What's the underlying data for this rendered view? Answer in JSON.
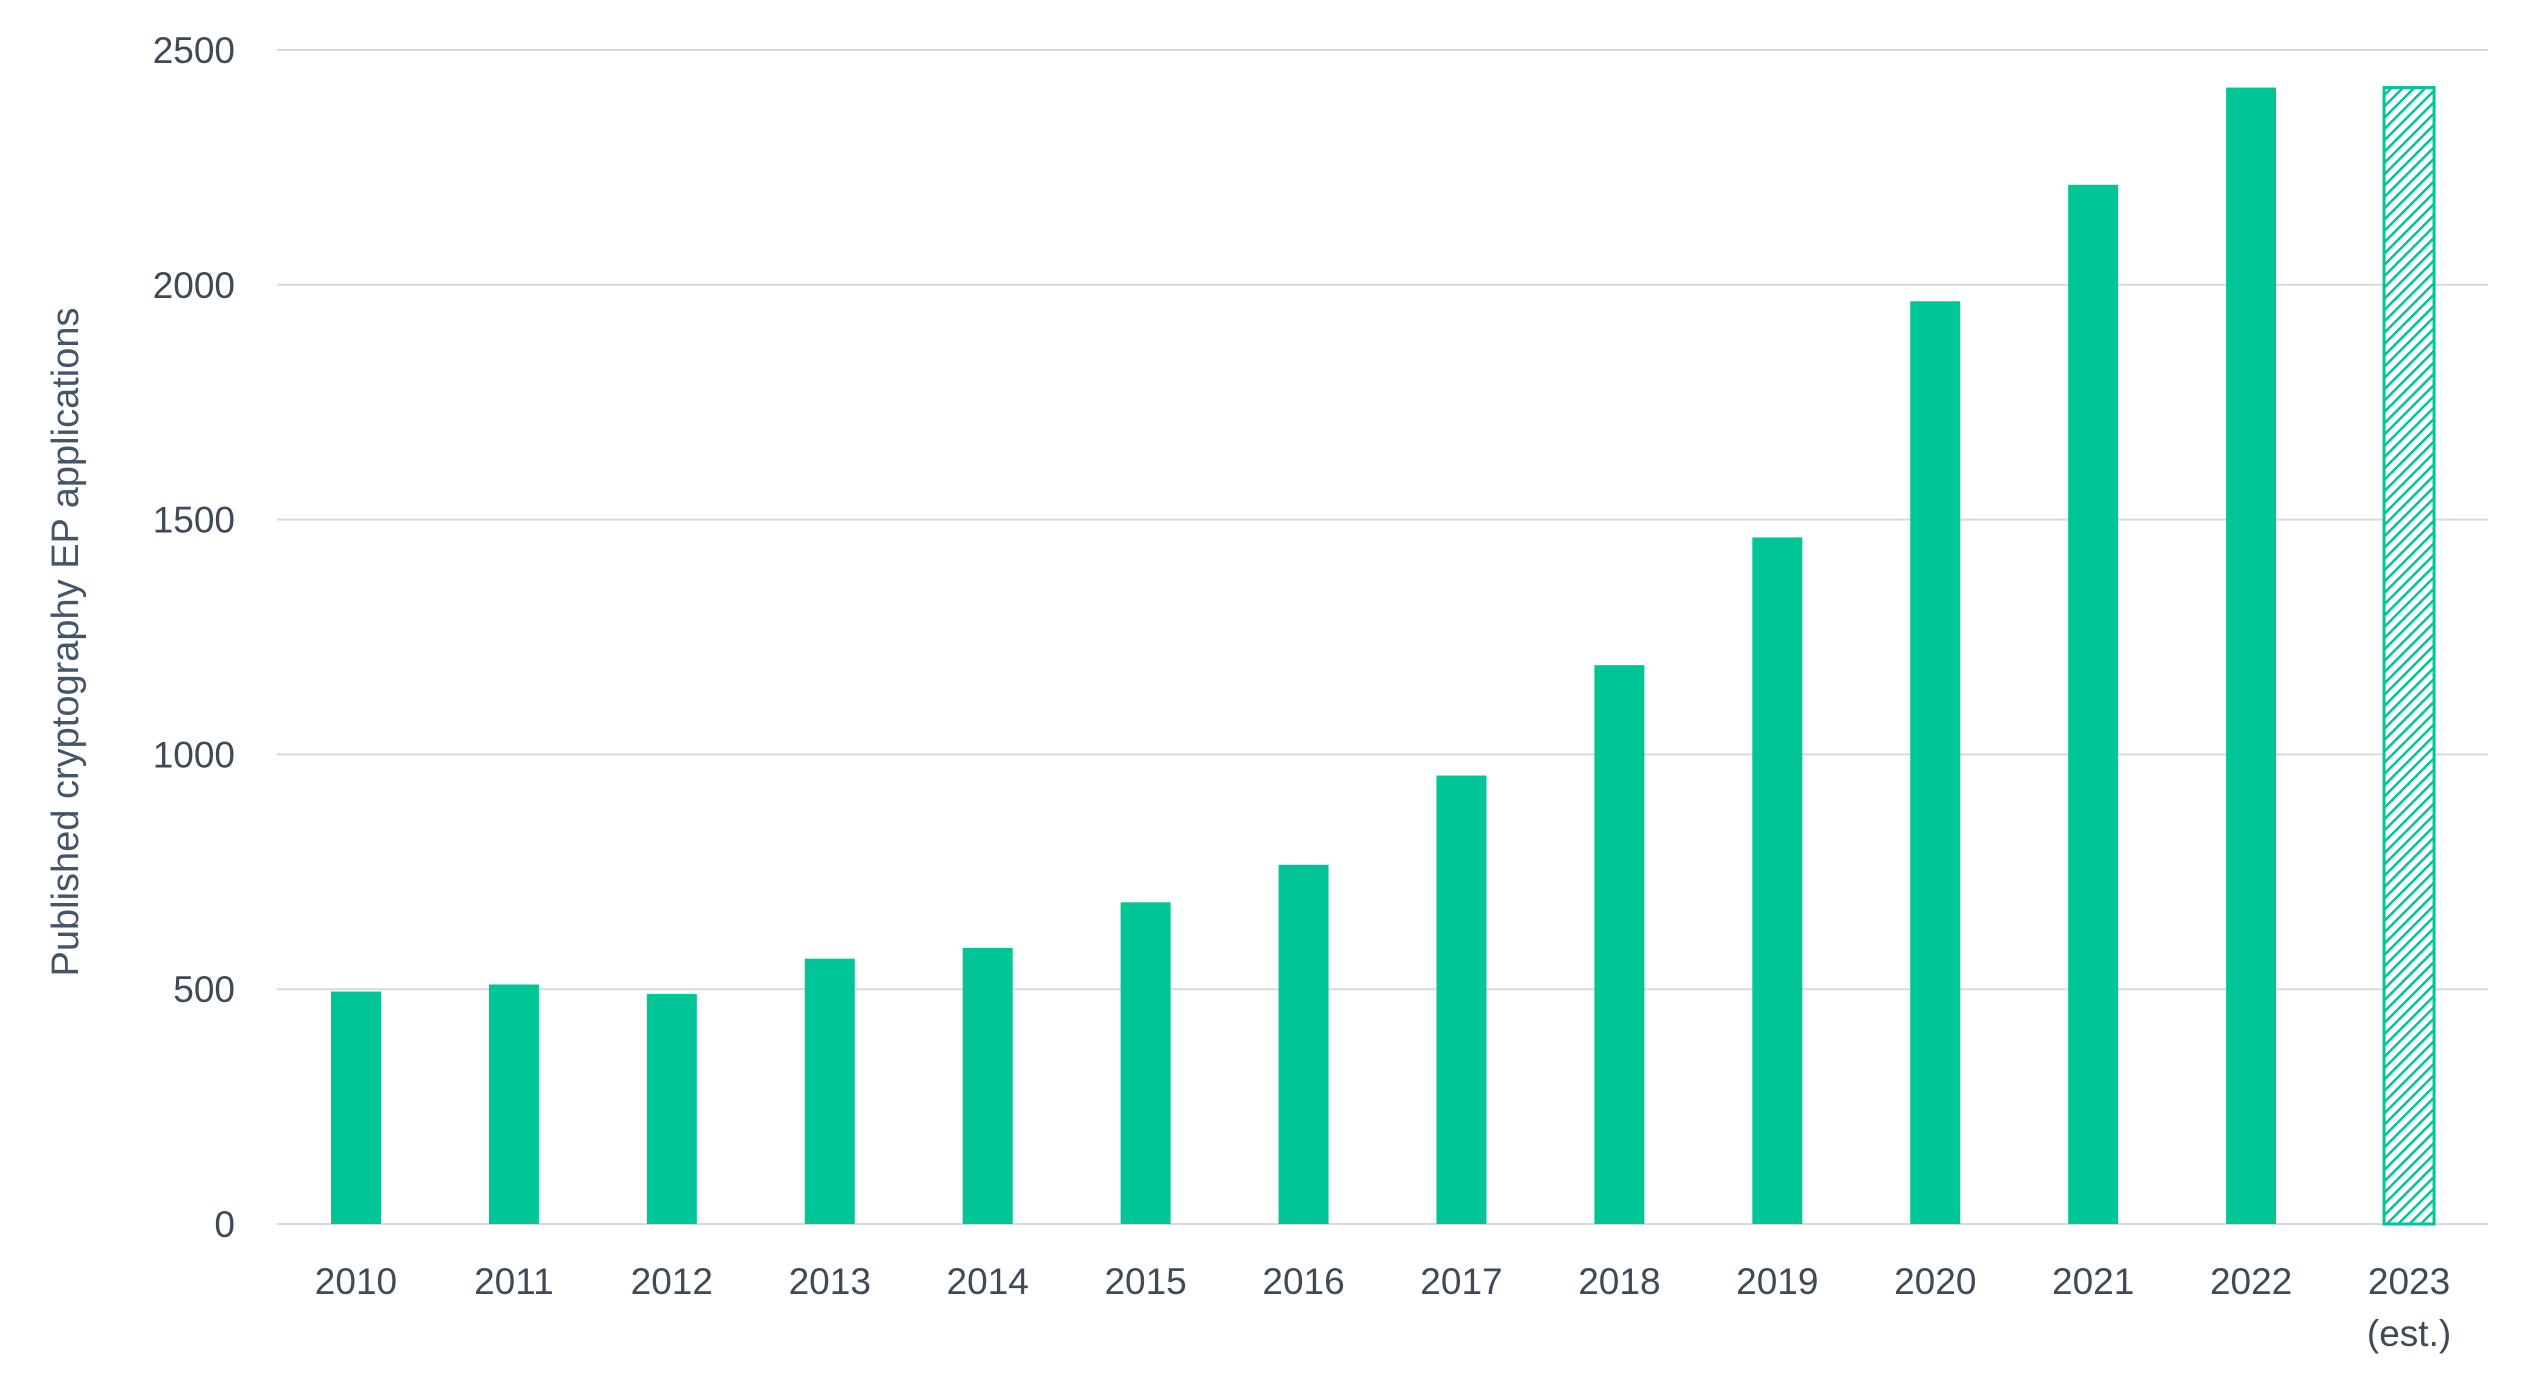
{
  "chart_data": {
    "type": "bar",
    "title": "",
    "xlabel": "",
    "ylabel": "Published cryptography EP applications",
    "categories": [
      "2010",
      "2011",
      "2012",
      "2013",
      "2014",
      "2015",
      "2016",
      "2017",
      "2018",
      "2019",
      "2020",
      "2021",
      "2022",
      "2023"
    ],
    "category_sublabels": [
      "",
      "",
      "",
      "",
      "",
      "",
      "",
      "",
      "",
      "",
      "",
      "",
      "",
      "(est.)"
    ],
    "values": [
      495,
      510,
      490,
      565,
      588,
      685,
      765,
      955,
      1190,
      1462,
      1965,
      2213,
      2420,
      2420
    ],
    "estimated": [
      false,
      false,
      false,
      false,
      false,
      false,
      false,
      false,
      false,
      false,
      false,
      false,
      false,
      true
    ],
    "ylim": [
      0,
      2500
    ],
    "yticks": [
      0,
      500,
      1000,
      1500,
      2000,
      2500
    ],
    "grid": true,
    "colors": {
      "bar": "#00c596",
      "grid": "#d9d9d9",
      "text": "#3f4a59"
    }
  }
}
